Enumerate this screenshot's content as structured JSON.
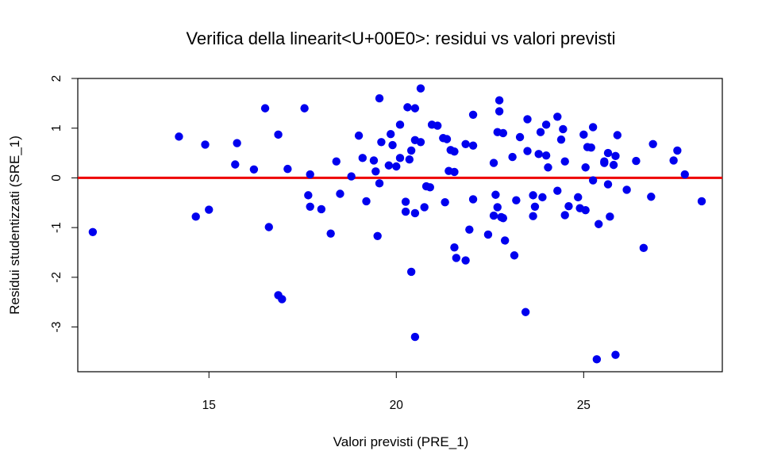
{
  "chart_data": {
    "type": "scatter",
    "title": "Verifica della linearit<U+00E0>: residui vs valori previsti",
    "xlabel": "Valori previsti (PRE_1)",
    "ylabel": "Residui studentizzati (SRE_1)",
    "xlim": [
      11.5,
      28.7
    ],
    "ylim": [
      -3.9,
      2.0
    ],
    "xticks": [
      15,
      20,
      25
    ],
    "yticks": [
      2,
      1,
      0,
      -1,
      -2,
      -3
    ],
    "x_tick_labels": [
      "15",
      "20",
      "25"
    ],
    "y_tick_labels": [
      "2",
      "1",
      "0",
      "-1",
      "-2",
      "-3"
    ],
    "grid": false,
    "reference_line": {
      "y": 0,
      "color": "#ee0000"
    },
    "point_color": "#0000ee",
    "points": [
      [
        11.9,
        -1.09
      ],
      [
        14.2,
        0.83
      ],
      [
        14.65,
        -0.78
      ],
      [
        14.9,
        0.67
      ],
      [
        15.0,
        -0.64
      ],
      [
        15.75,
        0.7
      ],
      [
        15.7,
        0.27
      ],
      [
        16.2,
        0.17
      ],
      [
        16.5,
        1.4
      ],
      [
        16.6,
        -0.99
      ],
      [
        16.85,
        0.87
      ],
      [
        16.85,
        -2.36
      ],
      [
        16.95,
        -2.44
      ],
      [
        17.1,
        0.18
      ],
      [
        17.55,
        1.4
      ],
      [
        17.65,
        -0.35
      ],
      [
        17.7,
        0.07
      ],
      [
        17.7,
        -0.58
      ],
      [
        18.0,
        -0.63
      ],
      [
        18.25,
        -1.12
      ],
      [
        18.4,
        0.33
      ],
      [
        18.5,
        -0.32
      ],
      [
        18.8,
        0.03
      ],
      [
        19.0,
        0.85
      ],
      [
        19.1,
        0.4
      ],
      [
        19.2,
        -0.47
      ],
      [
        19.4,
        0.35
      ],
      [
        19.45,
        0.13
      ],
      [
        19.5,
        -1.17
      ],
      [
        19.55,
        -0.11
      ],
      [
        19.55,
        1.6
      ],
      [
        19.6,
        0.72
      ],
      [
        19.8,
        0.25
      ],
      [
        19.85,
        0.88
      ],
      [
        19.9,
        0.66
      ],
      [
        20.0,
        0.23
      ],
      [
        20.1,
        1.07
      ],
      [
        20.1,
        0.4
      ],
      [
        20.25,
        -0.48
      ],
      [
        20.25,
        -0.68
      ],
      [
        20.3,
        1.42
      ],
      [
        20.35,
        0.37
      ],
      [
        20.4,
        0.55
      ],
      [
        20.4,
        -1.89
      ],
      [
        20.5,
        1.4
      ],
      [
        20.5,
        0.76
      ],
      [
        20.5,
        -0.71
      ],
      [
        20.5,
        -3.2
      ],
      [
        20.65,
        1.8
      ],
      [
        20.65,
        0.72
      ],
      [
        20.75,
        -0.59
      ],
      [
        20.8,
        -0.17
      ],
      [
        20.9,
        -0.19
      ],
      [
        20.95,
        1.07
      ],
      [
        21.1,
        1.05
      ],
      [
        21.25,
        0.8
      ],
      [
        21.3,
        -0.49
      ],
      [
        21.35,
        0.78
      ],
      [
        21.4,
        0.14
      ],
      [
        21.45,
        0.56
      ],
      [
        21.55,
        0.12
      ],
      [
        21.55,
        0.53
      ],
      [
        21.55,
        -1.4
      ],
      [
        21.6,
        -1.61
      ],
      [
        21.85,
        0.68
      ],
      [
        21.85,
        -1.66
      ],
      [
        21.95,
        -1.04
      ],
      [
        22.05,
        0.65
      ],
      [
        22.05,
        1.27
      ],
      [
        22.05,
        -0.43
      ],
      [
        22.45,
        -1.14
      ],
      [
        22.6,
        0.3
      ],
      [
        22.6,
        -0.76
      ],
      [
        22.65,
        -0.34
      ],
      [
        22.7,
        0.92
      ],
      [
        22.7,
        -0.59
      ],
      [
        22.75,
        1.56
      ],
      [
        22.75,
        1.34
      ],
      [
        22.8,
        -0.79
      ],
      [
        22.85,
        0.9
      ],
      [
        22.85,
        -0.81
      ],
      [
        22.9,
        -1.26
      ],
      [
        23.1,
        0.42
      ],
      [
        23.15,
        -1.56
      ],
      [
        23.2,
        -0.45
      ],
      [
        23.3,
        0.82
      ],
      [
        23.45,
        -2.7
      ],
      [
        23.5,
        0.54
      ],
      [
        23.5,
        1.18
      ],
      [
        23.65,
        -0.35
      ],
      [
        23.65,
        -0.77
      ],
      [
        23.7,
        -0.58
      ],
      [
        23.8,
        0.48
      ],
      [
        23.85,
        0.92
      ],
      [
        23.9,
        -0.39
      ],
      [
        24.0,
        1.07
      ],
      [
        24.0,
        0.45
      ],
      [
        24.05,
        0.21
      ],
      [
        24.3,
        -0.26
      ],
      [
        24.3,
        1.23
      ],
      [
        24.4,
        0.77
      ],
      [
        24.45,
        0.98
      ],
      [
        24.5,
        -0.75
      ],
      [
        24.5,
        0.33
      ],
      [
        24.6,
        -0.57
      ],
      [
        24.85,
        -0.39
      ],
      [
        24.9,
        -0.61
      ],
      [
        25.0,
        0.87
      ],
      [
        25.05,
        -0.65
      ],
      [
        25.05,
        0.21
      ],
      [
        25.1,
        0.62
      ],
      [
        25.2,
        0.61
      ],
      [
        25.25,
        1.02
      ],
      [
        25.25,
        -0.05
      ],
      [
        25.35,
        -3.65
      ],
      [
        25.4,
        -0.93
      ],
      [
        25.55,
        0.33
      ],
      [
        25.55,
        0.3
      ],
      [
        25.65,
        0.5
      ],
      [
        25.65,
        -0.13
      ],
      [
        25.7,
        -0.78
      ],
      [
        25.8,
        0.26
      ],
      [
        25.85,
        -3.56
      ],
      [
        25.85,
        0.44
      ],
      [
        25.9,
        0.86
      ],
      [
        26.15,
        -0.24
      ],
      [
        26.4,
        0.34
      ],
      [
        26.6,
        -1.41
      ],
      [
        26.8,
        -0.38
      ],
      [
        26.85,
        0.68
      ],
      [
        27.4,
        0.35
      ],
      [
        27.5,
        0.55
      ],
      [
        27.7,
        0.07
      ],
      [
        28.15,
        -0.47
      ]
    ]
  }
}
